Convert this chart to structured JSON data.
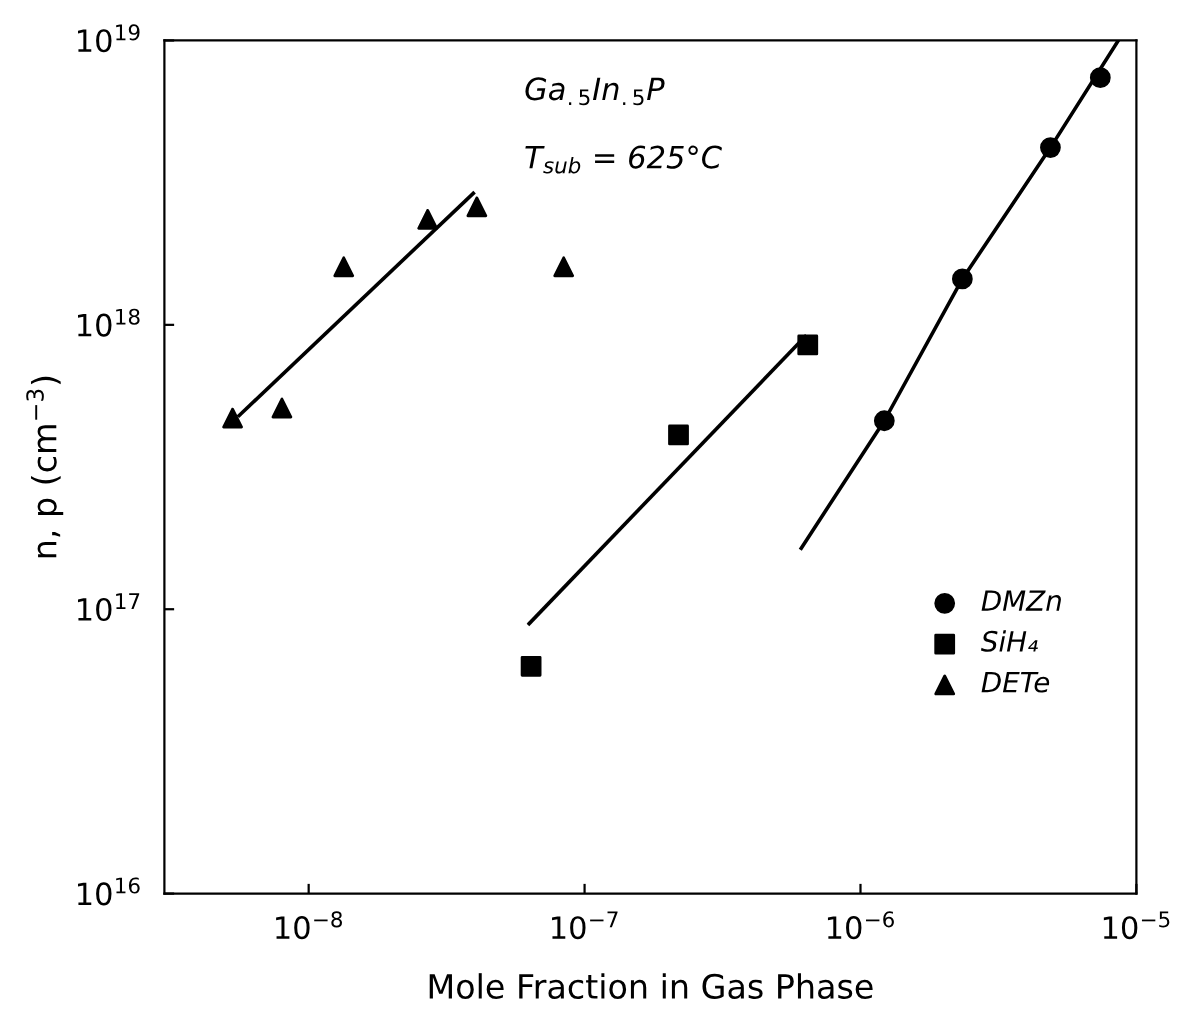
{
  "chart_data": {
    "type": "scatter",
    "xlabel": "Mole Fraction in Gas Phase",
    "ylabel": "n, p (cm$^{−3}$)",
    "log": "xy",
    "xlim": [
      3e-09,
      1e-05
    ],
    "ylim": [
      1e+16,
      1e+19
    ],
    "xticks": [
      {
        "value": 1e-08,
        "label": "10$^{−8}$"
      },
      {
        "value": 1e-07,
        "label": "10$^{−7}$"
      },
      {
        "value": 1e-06,
        "label": "10$^{−6}$"
      },
      {
        "value": 1e-05,
        "label": "10$^{−5}$"
      }
    ],
    "yticks": [
      {
        "value": 1e+16,
        "label": "10$^{16}$"
      },
      {
        "value": 1e+17,
        "label": "10$^{17}$"
      },
      {
        "value": 1e+18,
        "label": "10$^{18}$"
      },
      {
        "value": 1e+19,
        "label": "10$^{19}$"
      }
    ],
    "grid": false,
    "legend": "bottom right",
    "annotations": [
      "Ga$_{.5}$In$_{.5}$P",
      "T$_{sub}$ = 625°C"
    ],
    "series": [
      {
        "name": "DMZn",
        "marker": "circle",
        "color": "#000000",
        "x": [
          1.22e-06,
          2.34e-06,
          4.88e-06,
          7.4e-06
        ],
        "values": [
          4.6e+17,
          1.45e+18,
          4.2e+18,
          7.4e+18
        ]
      },
      {
        "name": "SiH₄",
        "marker": "square",
        "color": "#000000",
        "x": [
          6.4e-08,
          2.19e-07,
          6.44e-07
        ],
        "values": [
          6.3e+16,
          4.1e+17,
          8.5e+17
        ]
      },
      {
        "name": "DETe",
        "marker": "triangle",
        "color": "#000000",
        "x": [
          5.3e-09,
          8e-09,
          1.34e-08,
          2.7e-08,
          4.07e-08,
          8.4e-08
        ],
        "values": [
          4.7e+17,
          5.1e+17,
          1.6e+18,
          2.35e+18,
          2.6e+18,
          1.6e+18
        ]
      },
      {
        "type": "line",
        "color": "#000000",
        "x": [
          6.1e-07,
          1.22e-06,
          2.34e-06,
          4.88e-06,
          8.6e-06
        ],
        "values": [
          1.64e+17,
          4.6e+17,
          1.45e+18,
          4.2e+18,
          1e+19
        ]
      },
      {
        "type": "line",
        "color": "#000000",
        "x": [
          6.3e-08,
          6.3e-07
        ],
        "values": [
          8.9e+16,
          9.1e+17
        ]
      },
      {
        "type": "line",
        "color": "#000000",
        "x": [
          5.6e-09,
          3.95e-08
        ],
        "values": [
          4.8e+17,
          2.9e+18
        ]
      }
    ]
  }
}
